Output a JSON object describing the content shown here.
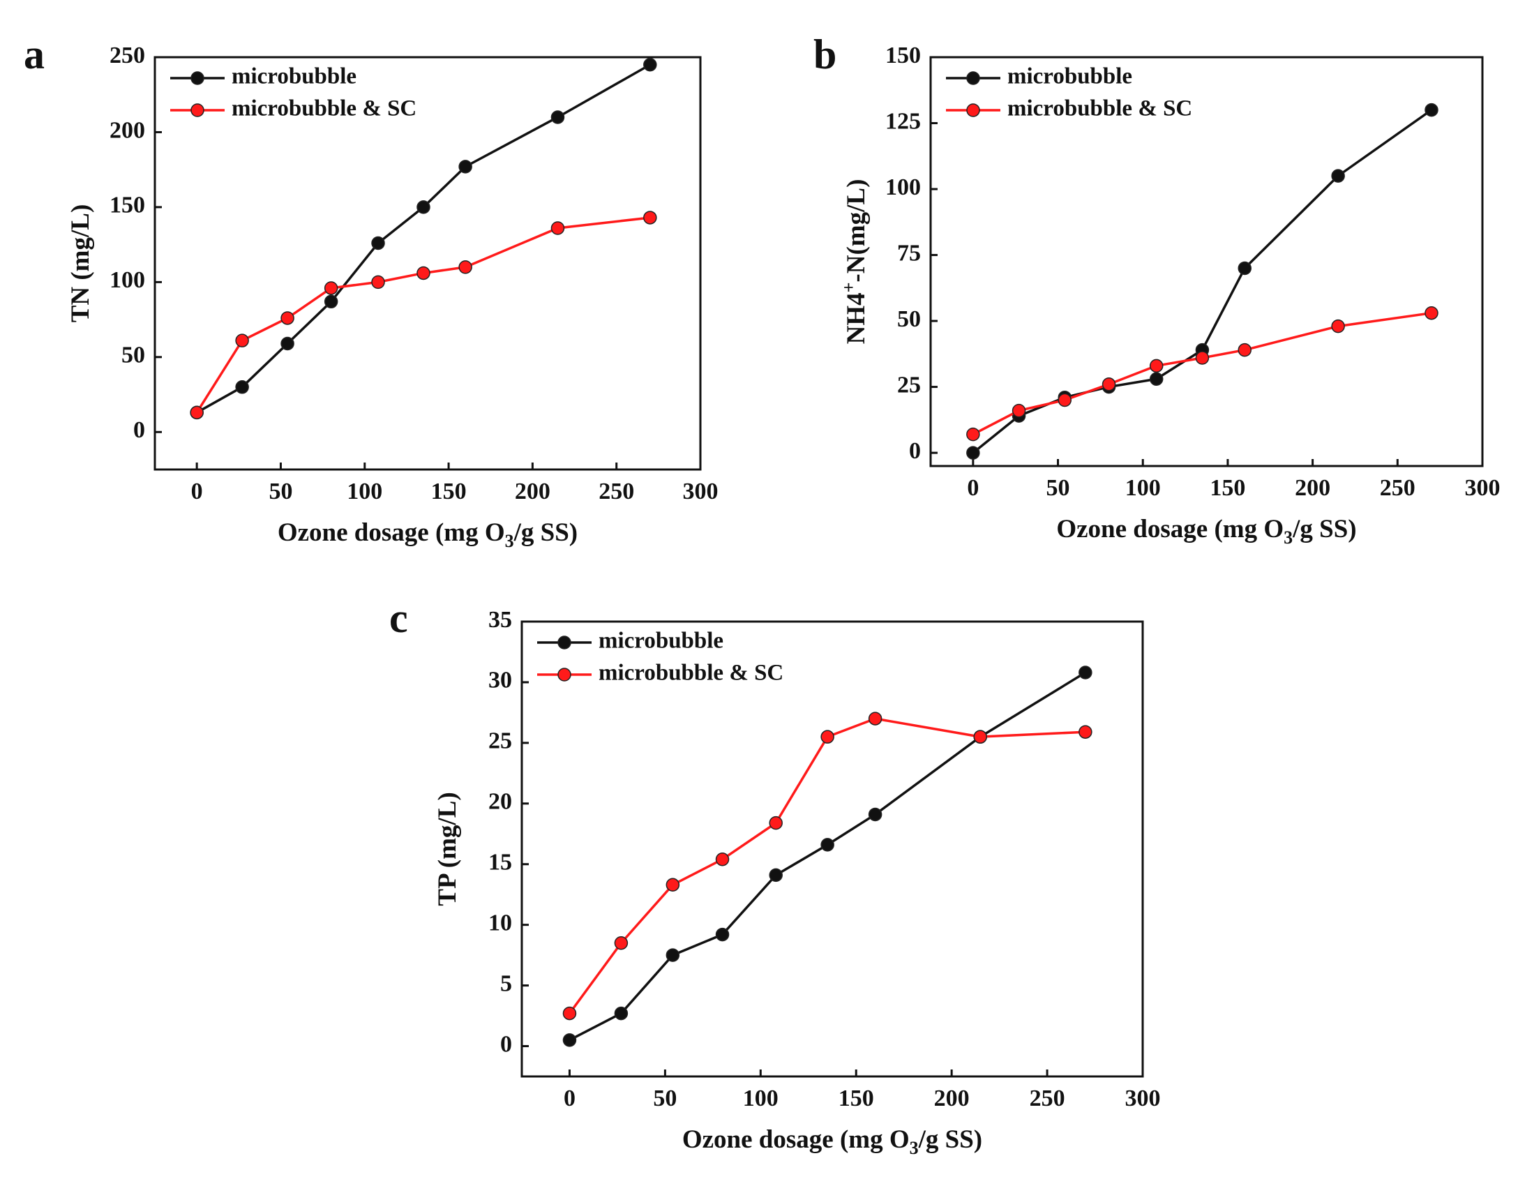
{
  "figure": {
    "colors": {
      "series1": "#111111",
      "series2": "#ff1a1a",
      "axis": "#111111"
    }
  },
  "chart_data": [
    {
      "panel": "a",
      "type": "line",
      "title": "",
      "xlabel": {
        "main": "Ozone dosage (mg O",
        "sub": "3",
        "rest": "/g SS)"
      },
      "ylabel": {
        "main": "TN (mg/L)"
      },
      "xlim": [
        -25,
        300
      ],
      "ylim": [
        -25,
        250
      ],
      "xticks": [
        0,
        50,
        100,
        150,
        200,
        250,
        300
      ],
      "yticks": [
        0,
        50,
        100,
        150,
        200,
        250
      ],
      "legend_position": "top-left",
      "x": [
        0,
        27,
        54,
        80,
        108,
        135,
        160,
        215,
        270
      ],
      "series": [
        {
          "name": "microbubble",
          "color": "#111111",
          "values": [
            13,
            30,
            59,
            87,
            126,
            150,
            177,
            210,
            245
          ]
        },
        {
          "name": "microbubble & SC",
          "color": "#ff1a1a",
          "values": [
            13,
            61,
            76,
            96,
            100,
            106,
            110,
            136,
            143
          ]
        }
      ]
    },
    {
      "panel": "b",
      "type": "line",
      "title": "",
      "xlabel": {
        "main": "Ozone dosage (mg O",
        "sub": "3",
        "rest": "/g SS)"
      },
      "ylabel": {
        "main": "NH4",
        "sup": "+",
        "rest": "-N(mg/L)"
      },
      "xlim": [
        -25,
        300
      ],
      "ylim": [
        -5,
        150
      ],
      "xticks": [
        0,
        50,
        100,
        150,
        200,
        250,
        300
      ],
      "yticks": [
        0,
        25,
        50,
        75,
        100,
        125,
        150
      ],
      "legend_position": "top-left",
      "x": [
        0,
        27,
        54,
        80,
        108,
        135,
        160,
        215,
        270
      ],
      "series": [
        {
          "name": "microbubble",
          "color": "#111111",
          "values": [
            0,
            14,
            21,
            25,
            28,
            39,
            70,
            105,
            130
          ]
        },
        {
          "name": "microbubble & SC",
          "color": "#ff1a1a",
          "values": [
            7,
            16,
            20,
            26,
            33,
            36,
            39,
            48,
            53
          ]
        }
      ]
    },
    {
      "panel": "c",
      "type": "line",
      "title": "",
      "xlabel": {
        "main": "Ozone dosage (mg O",
        "sub": "3",
        "rest": "/g SS)"
      },
      "ylabel": {
        "main": "TP (mg/L)"
      },
      "xlim": [
        -25,
        300
      ],
      "ylim": [
        -2.5,
        35
      ],
      "xticks": [
        0,
        50,
        100,
        150,
        200,
        250,
        300
      ],
      "yticks": [
        0,
        5,
        10,
        15,
        20,
        25,
        30,
        35
      ],
      "legend_position": "top-left",
      "x": [
        0,
        27,
        54,
        80,
        108,
        135,
        160,
        215,
        270
      ],
      "series": [
        {
          "name": "microbubble",
          "color": "#111111",
          "values": [
            0.5,
            2.7,
            7.5,
            9.2,
            14.1,
            16.6,
            19.1,
            25.5,
            30.8
          ]
        },
        {
          "name": "microbubble & SC",
          "color": "#ff1a1a",
          "values": [
            2.7,
            8.5,
            13.3,
            15.4,
            18.4,
            25.5,
            27.0,
            25.5,
            25.9
          ]
        }
      ]
    }
  ]
}
